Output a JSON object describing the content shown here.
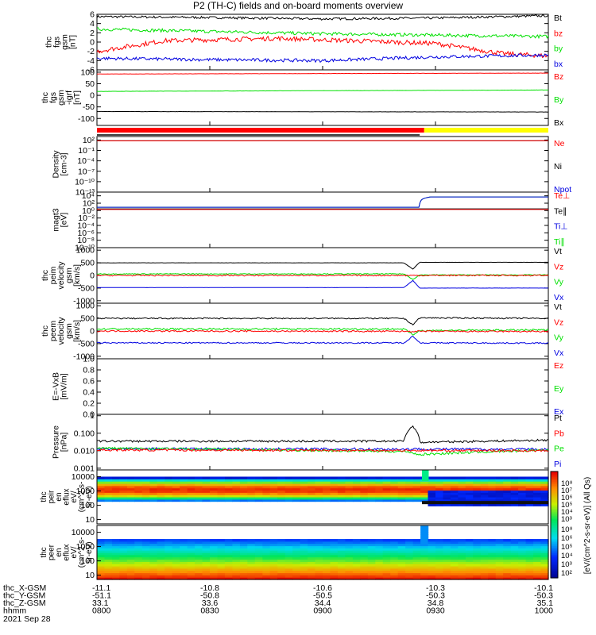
{
  "title": "P2 (TH-C) fields and on-board moments overview",
  "colors": {
    "black": "#000000",
    "red": "#ff0000",
    "green": "#00e000",
    "blue": "#0000e0",
    "yellow": "#ffff00"
  },
  "panels": [
    {
      "ylabel": [
        "thc",
        "fgs",
        "gsm",
        "[nT]"
      ],
      "ylim": [
        -6,
        6
      ],
      "scale": "linear",
      "ticks": [
        {
          "v": 6,
          "t": "6"
        },
        {
          "v": 4,
          "t": "4"
        },
        {
          "v": 2,
          "t": "2"
        },
        {
          "v": 0,
          "t": "0"
        },
        {
          "v": -2,
          "t": "-2"
        },
        {
          "v": -4,
          "t": "-4"
        },
        {
          "v": -6,
          "t": "-6"
        }
      ],
      "legend": [
        {
          "t": "Bt",
          "c": "black"
        },
        {
          "t": "bz",
          "c": "red"
        },
        {
          "t": "by",
          "c": "green"
        },
        {
          "t": "bx",
          "c": "blue"
        }
      ],
      "series": [
        {
          "c": "black",
          "x": [
            0,
            0.5,
            1,
            1.5,
            2
          ],
          "y": [
            5.5,
            5.3,
            5.0,
            5.2,
            5.7
          ],
          "noise": 0.25
        },
        {
          "c": "green",
          "x": [
            0,
            0.5,
            1,
            1.5,
            2
          ],
          "y": [
            2.8,
            2.3,
            1.8,
            1.5,
            1.2
          ],
          "noise": 0.35
        },
        {
          "c": "red",
          "x": [
            0,
            0.3,
            0.8,
            1.2,
            1.5,
            1.8,
            2
          ],
          "y": [
            -2.0,
            0.3,
            0.8,
            0.2,
            -0.3,
            -2.5,
            -3.0
          ],
          "noise": 0.5
        },
        {
          "c": "blue",
          "x": [
            0,
            0.5,
            1,
            1.5,
            2
          ],
          "y": [
            -3.5,
            -3.8,
            -4.0,
            -3.2,
            -2.8
          ],
          "noise": 0.35
        }
      ]
    },
    {
      "ylabel": [
        "thc",
        "fgs",
        "gsm",
        "-igrf",
        "[nT]"
      ],
      "ylim": [
        -130,
        110
      ],
      "scale": "linear",
      "ticks": [
        {
          "v": 100,
          "t": "100"
        },
        {
          "v": 50,
          "t": "50"
        },
        {
          "v": 0,
          "t": "0"
        },
        {
          "v": -50,
          "t": "-50"
        },
        {
          "v": -100,
          "t": "-100"
        }
      ],
      "legend": [
        {
          "t": "Bz",
          "c": "red"
        },
        {
          "t": "By",
          "c": "green"
        },
        {
          "t": "Bx",
          "c": "black"
        }
      ],
      "series": [
        {
          "c": "red",
          "x": [
            0,
            2
          ],
          "y": [
            92,
            96
          ],
          "noise": 0.5
        },
        {
          "c": "green",
          "x": [
            0,
            2
          ],
          "y": [
            17,
            23
          ],
          "noise": 0.4
        },
        {
          "c": "black",
          "x": [
            0,
            2
          ],
          "y": [
            -70,
            -72
          ],
          "noise": 0.4
        }
      ]
    },
    {
      "ylabel": [
        "Density",
        "[cm-3]"
      ],
      "ylim": [
        1e-13,
        1000
      ],
      "scale": "log",
      "ticks": [
        {
          "v": 100,
          "t": "10²"
        },
        {
          "v": 0.1,
          "t": "10⁻¹"
        },
        {
          "v": 0.0001,
          "t": "10⁻⁴"
        },
        {
          "v": 1e-07,
          "t": "10⁻⁷"
        },
        {
          "v": 1e-10,
          "t": "10⁻¹⁰"
        },
        {
          "v": 1e-13,
          "t": "10⁻¹³"
        }
      ],
      "legend": [
        {
          "t": "Ne",
          "c": "red"
        },
        {
          "t": "Ni",
          "c": "black"
        },
        {
          "t": "Npot",
          "c": "blue"
        }
      ],
      "series": [
        {
          "c": "black",
          "x": [
            0,
            2
          ],
          "y": [
            60,
            65
          ],
          "noise": 0
        },
        {
          "c": "red",
          "x": [
            0,
            2
          ],
          "y": [
            55,
            60
          ],
          "noise": 0
        }
      ]
    },
    {
      "ylabel": [
        "magt3",
        "[eV]"
      ],
      "ylim": [
        1e-10,
        100000
      ],
      "scale": "log",
      "ticks": [
        {
          "v": 10000,
          "t": "10⁴"
        },
        {
          "v": 100,
          "t": "10²"
        },
        {
          "v": 1,
          "t": "10⁰"
        },
        {
          "v": 0.01,
          "t": "10⁻²"
        },
        {
          "v": 0.0001,
          "t": "10⁻⁴"
        },
        {
          "v": 1e-06,
          "t": "10⁻⁶"
        },
        {
          "v": 1e-08,
          "t": "10⁻⁸"
        },
        {
          "v": 1e-10,
          "t": "10⁻¹⁰"
        }
      ],
      "legend": [
        {
          "t": "Te⊥",
          "c": "red"
        },
        {
          "t": "Te∥",
          "c": "black"
        },
        {
          "t": "Ti⊥",
          "c": "blue"
        },
        {
          "t": "Ti∥",
          "c": "green"
        }
      ],
      "series": [
        {
          "c": "green",
          "x": [
            0,
            1.43,
            1.48,
            2
          ],
          "y": [
            8,
            8,
            5000,
            5000
          ],
          "noise": 0
        },
        {
          "c": "blue",
          "x": [
            0,
            1.43,
            1.48,
            2
          ],
          "y": [
            8,
            8,
            5000,
            5000
          ],
          "noise": 0
        },
        {
          "c": "black",
          "x": [
            0,
            2
          ],
          "y": [
            3,
            3
          ],
          "noise": 0
        },
        {
          "c": "red",
          "x": [
            0,
            2
          ],
          "y": [
            2,
            2
          ],
          "noise": 0
        }
      ]
    },
    {
      "ylabel": [
        "thc",
        "peim",
        "velocity",
        "gsm",
        "[km/s]"
      ],
      "ylim": [
        -1100,
        1100
      ],
      "scale": "linear",
      "ticks": [
        {
          "v": 1000,
          "t": "1000"
        },
        {
          "v": 500,
          "t": "500"
        },
        {
          "v": 0,
          "t": "0"
        },
        {
          "v": -500,
          "t": "-500"
        },
        {
          "v": -1000,
          "t": "-1000"
        }
      ],
      "legend": [
        {
          "t": "Vt",
          "c": "black"
        },
        {
          "t": "Vz",
          "c": "red"
        },
        {
          "t": "Vy",
          "c": "green"
        },
        {
          "t": "Vx",
          "c": "blue"
        }
      ],
      "series": [
        {
          "c": "black",
          "x": [
            0,
            1.36,
            1.4,
            1.43,
            2
          ],
          "y": [
            500,
            500,
            250,
            520,
            520
          ],
          "noise": 3
        },
        {
          "c": "green",
          "x": [
            0,
            1.36,
            1.4,
            1.43,
            2
          ],
          "y": [
            60,
            60,
            -150,
            20,
            20
          ],
          "noise": 15
        },
        {
          "c": "red",
          "x": [
            0,
            2
          ],
          "y": [
            0,
            0
          ],
          "noise": 25
        },
        {
          "c": "blue",
          "x": [
            0,
            1.36,
            1.4,
            1.43,
            2
          ],
          "y": [
            -480,
            -480,
            -200,
            -500,
            -500
          ],
          "noise": 3
        }
      ]
    },
    {
      "ylabel": [
        "thc",
        "peem",
        "velocity",
        "gsm",
        "[km/s]"
      ],
      "ylim": [
        -1100,
        1100
      ],
      "scale": "linear",
      "ticks": [
        {
          "v": 1000,
          "t": "1000"
        },
        {
          "v": 500,
          "t": "500"
        },
        {
          "v": 0,
          "t": "0"
        },
        {
          "v": -500,
          "t": "-500"
        },
        {
          "v": -1000,
          "t": "-1000"
        }
      ],
      "legend": [
        {
          "t": "Vt",
          "c": "black"
        },
        {
          "t": "Vz",
          "c": "red"
        },
        {
          "t": "Vy",
          "c": "green"
        },
        {
          "t": "Vx",
          "c": "blue"
        }
      ],
      "series": [
        {
          "c": "black",
          "x": [
            0,
            1.36,
            1.4,
            1.43,
            2
          ],
          "y": [
            500,
            500,
            250,
            520,
            500
          ],
          "noise": 25
        },
        {
          "c": "green",
          "x": [
            0,
            1.36,
            1.4,
            1.43,
            2
          ],
          "y": [
            80,
            80,
            -150,
            20,
            40
          ],
          "noise": 35
        },
        {
          "c": "red",
          "x": [
            0,
            2
          ],
          "y": [
            0,
            -20
          ],
          "noise": 30
        },
        {
          "c": "blue",
          "x": [
            0,
            1.36,
            1.4,
            1.43,
            2
          ],
          "y": [
            -470,
            -470,
            -200,
            -470,
            -480
          ],
          "noise": 25
        }
      ]
    },
    {
      "ylabel": [
        "E=-VxB",
        "[mV/m]"
      ],
      "ylim": [
        0,
        1
      ],
      "scale": "linear",
      "ticks": [
        {
          "v": 1,
          "t": "1.0"
        },
        {
          "v": 0.8,
          "t": "0.8"
        },
        {
          "v": 0.6,
          "t": "0.6"
        },
        {
          "v": 0.4,
          "t": "0.4"
        },
        {
          "v": 0.2,
          "t": "0.2"
        },
        {
          "v": 0,
          "t": "0.0"
        }
      ],
      "legend": [
        {
          "t": "Ez",
          "c": "red"
        },
        {
          "t": "Ey",
          "c": "green"
        },
        {
          "t": "Ex",
          "c": "blue"
        }
      ],
      "series": []
    },
    {
      "ylabel": [
        "Pressure",
        "[nPa]"
      ],
      "ylim": [
        0.0008,
        1.2
      ],
      "scale": "log",
      "ticks": [
        {
          "v": 1,
          "t": "1"
        },
        {
          "v": 0.1,
          "t": "0.100"
        },
        {
          "v": 0.01,
          "t": "0.010"
        },
        {
          "v": 0.001,
          "t": "0.001"
        }
      ],
      "legend": [
        {
          "t": "Pt",
          "c": "black"
        },
        {
          "t": "Pb",
          "c": "red"
        },
        {
          "t": "Pe",
          "c": "green"
        },
        {
          "t": "Pi",
          "c": "blue"
        }
      ],
      "series": [
        {
          "c": "black",
          "x": [
            0,
            1.36,
            1.4,
            1.43,
            2
          ],
          "y": [
            0.035,
            0.035,
            0.25,
            0.03,
            0.04
          ],
          "noise": 0.06
        },
        {
          "c": "blue",
          "x": [
            0,
            2
          ],
          "y": [
            0.013,
            0.012
          ],
          "noise": 0.07
        },
        {
          "c": "green",
          "x": [
            0,
            1.38,
            1.42,
            2
          ],
          "y": [
            0.014,
            0.009,
            0.006,
            0.011
          ],
          "noise": 0.07
        },
        {
          "c": "red",
          "x": [
            0,
            2
          ],
          "y": [
            0.011,
            0.01
          ],
          "noise": 0.06
        }
      ]
    }
  ],
  "spectrograms": [
    {
      "ylabel": [
        "thc",
        "peir",
        "en",
        "eflux",
        "eV/",
        "(cm^2-s-",
        "sr-eV)"
      ],
      "ticks": [
        {
          "v": 10000,
          "t": "10000"
        },
        {
          "v": 1000,
          "t": "1000"
        },
        {
          "v": 100,
          "t": "100"
        },
        {
          "v": 10,
          "t": "10"
        }
      ],
      "ylim": [
        5,
        30000
      ]
    },
    {
      "ylabel": [
        "thc",
        "peer",
        "en",
        "eflux",
        "eV/",
        "(cm^2-s-",
        "sr-eV)"
      ],
      "ticks": [
        {
          "v": 10000,
          "t": "10000"
        },
        {
          "v": 1000,
          "t": "1000"
        },
        {
          "v": 100,
          "t": "100"
        },
        {
          "v": 10,
          "t": "10"
        }
      ],
      "ylim": [
        5,
        30000
      ]
    }
  ],
  "colorbar": {
    "label": "[eV/(cm^2-s-sr-eV)] (All Qs)",
    "upper_ticks": [
      "10⁸",
      "10⁷",
      "10⁶",
      "10⁵",
      "10⁴",
      "10³"
    ],
    "lower_ticks": [
      "10⁸",
      "10⁶",
      "10⁵",
      "10⁴",
      "10³",
      "10²"
    ]
  },
  "xaxis": {
    "rows": [
      {
        "label": "thc_X-GSM",
        "values": [
          "-11.1",
          "-10.8",
          "-10.6",
          "-10.3",
          "-10.1"
        ]
      },
      {
        "label": "thc_Y-GSM",
        "values": [
          "-51.1",
          "-50.8",
          "-50.5",
          "-50.3",
          "-50.3"
        ]
      },
      {
        "label": "thc_Z-GSM",
        "values": [
          "33.1",
          "33.6",
          "34.4",
          "34.8",
          "35.1"
        ]
      },
      {
        "label": "hhmm",
        "values": [
          "0800",
          "0830",
          "0900",
          "0930",
          "1000"
        ]
      }
    ],
    "tick_hours": [
      0,
      0.5,
      1,
      1.5,
      2
    ],
    "date": "2021 Sep 28"
  }
}
